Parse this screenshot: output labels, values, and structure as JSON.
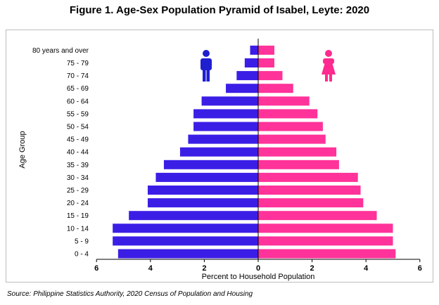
{
  "title": "Figure 1. Age-Sex Population Pyramid of Isabel, Leyte: 2020",
  "source": "Source: Philippine Statistics Authority, 2020 Census of Population and Housing",
  "colors": {
    "male": "#3b1ee6",
    "female": "#ff3399"
  },
  "icons": {
    "male": "male-person-icon",
    "female": "female-person-icon"
  },
  "chart_data": {
    "type": "bar",
    "orientation": "horizontal-pyramid",
    "xlabel": "Percent to Household Population",
    "ylabel": "Age Group",
    "xlim": [
      -6,
      6
    ],
    "x_ticks": [
      -6,
      -4,
      -2,
      0,
      2,
      4,
      6
    ],
    "x_tick_labels": [
      "6",
      "4",
      "2",
      "0",
      "2",
      "4",
      "6"
    ],
    "grid": false,
    "categories": [
      "0 - 4",
      "5 - 9",
      "10 - 14",
      "15 - 19",
      "20 - 24",
      "25 - 29",
      "30 - 34",
      "35 - 39",
      "40 - 44",
      "45 - 49",
      "50 - 54",
      "55 - 59",
      "60 - 64",
      "65 - 69",
      "70 - 74",
      "75 - 79",
      "80 years and over"
    ],
    "series": [
      {
        "key": "male",
        "values": [
          5.2,
          5.4,
          5.4,
          4.8,
          4.1,
          4.1,
          3.8,
          3.5,
          2.9,
          2.6,
          2.4,
          2.4,
          2.1,
          1.2,
          0.8,
          0.5,
          0.3
        ]
      },
      {
        "key": "female",
        "values": [
          5.1,
          5.0,
          5.0,
          4.4,
          3.9,
          3.8,
          3.7,
          3.0,
          2.9,
          2.5,
          2.4,
          2.2,
          1.9,
          1.3,
          0.9,
          0.6,
          0.6
        ]
      }
    ]
  }
}
